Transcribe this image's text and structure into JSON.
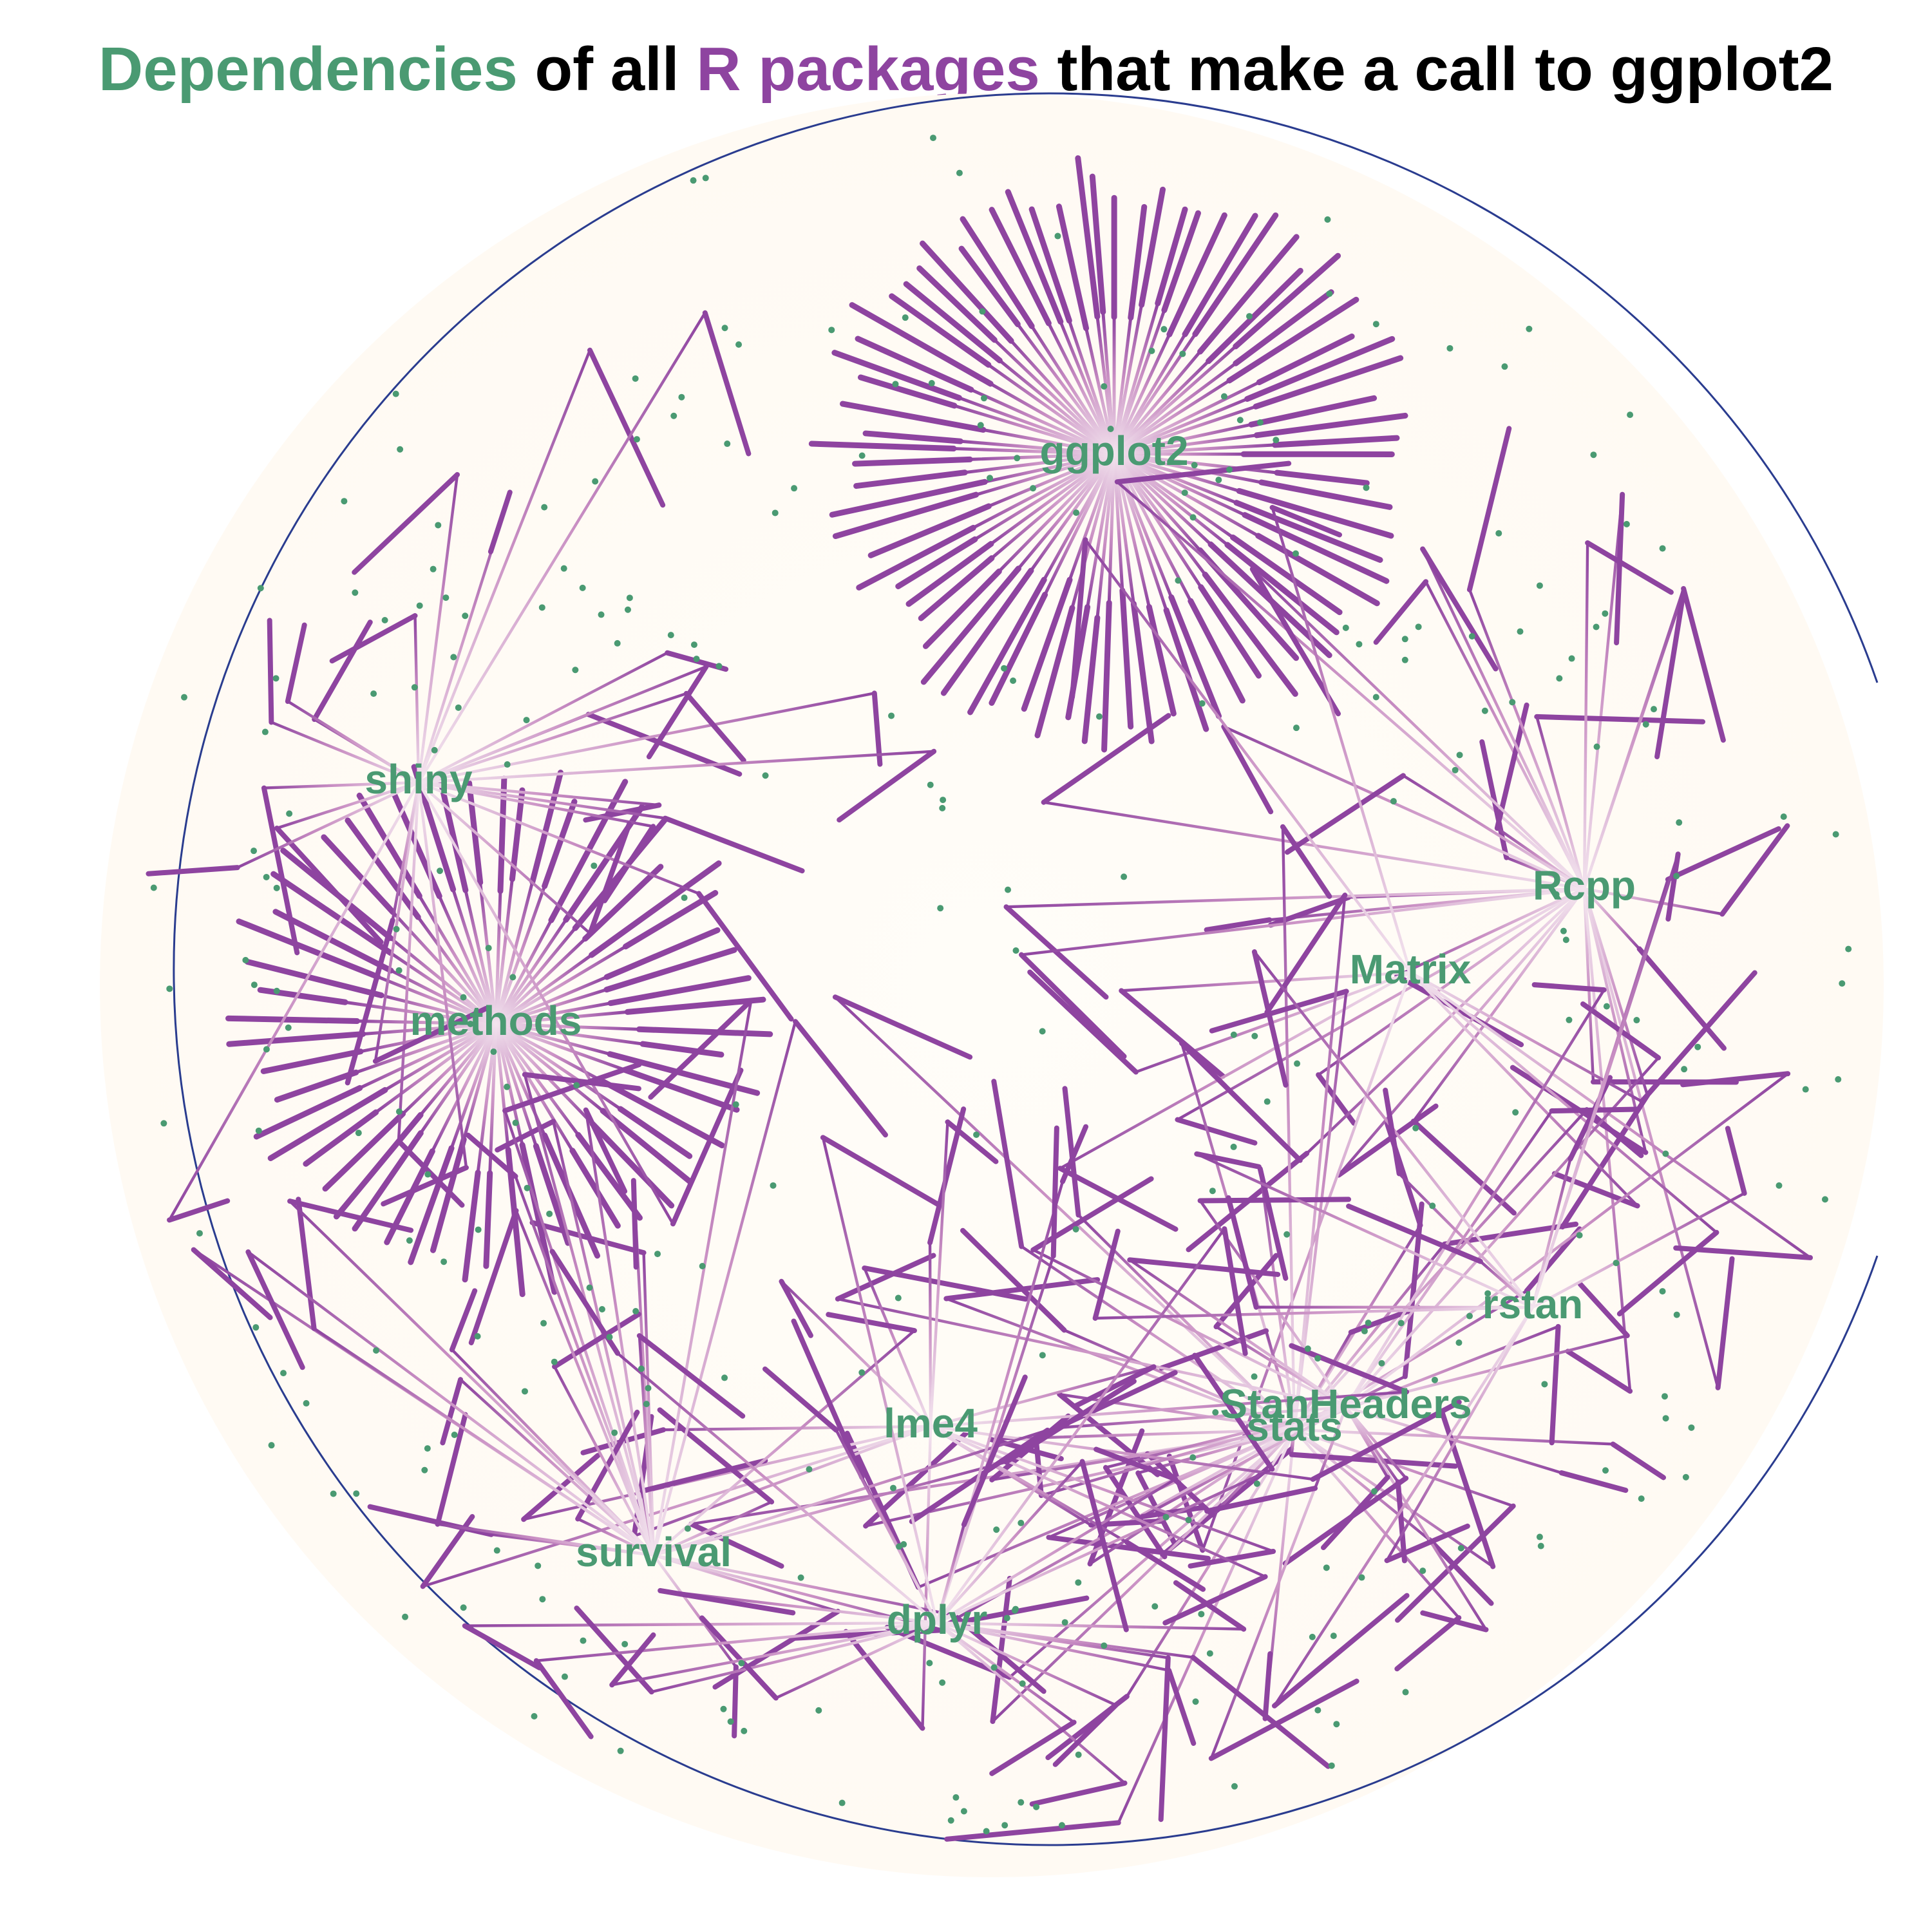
{
  "title": {
    "part1": "Dependencies",
    "part2": " of all ",
    "part3": "R packages",
    "part4": " that make a call to ggplot2"
  },
  "colors": {
    "dependency": "#4a9a72",
    "package": "#8e44a0",
    "edge_light": "#f3e4ee",
    "background": "#fffdf8",
    "circle": "#2a3c8f",
    "title_text": "#000000"
  },
  "hubs": [
    {
      "name": "ggplot2",
      "label": "ggplot2",
      "packages": 76,
      "arrangement": "ring"
    },
    {
      "name": "methods",
      "label": "methods",
      "packages": 56,
      "arrangement": "ring"
    },
    {
      "name": "shiny",
      "label": "shiny",
      "packages": 28,
      "arrangement": "scatter"
    },
    {
      "name": "Rcpp",
      "label": "Rcpp",
      "packages": 32,
      "arrangement": "scatter"
    },
    {
      "name": "Matrix",
      "label": "Matrix",
      "packages": 10,
      "arrangement": "scatter"
    },
    {
      "name": "stats",
      "label": "stats",
      "packages": 40,
      "arrangement": "scatter"
    },
    {
      "name": "StanHeaders",
      "label": "StanHeaders",
      "packages": 22,
      "arrangement": "scatter"
    },
    {
      "name": "rstan",
      "label": "rstan",
      "packages": 12,
      "arrangement": "scatter"
    },
    {
      "name": "lme4",
      "label": "lme4",
      "packages": 16,
      "arrangement": "scatter"
    },
    {
      "name": "survival",
      "label": "survival",
      "packages": 30,
      "arrangement": "scatter"
    },
    {
      "name": "dplyr",
      "label": "dplyr",
      "packages": 24,
      "arrangement": "scatter"
    }
  ]
}
